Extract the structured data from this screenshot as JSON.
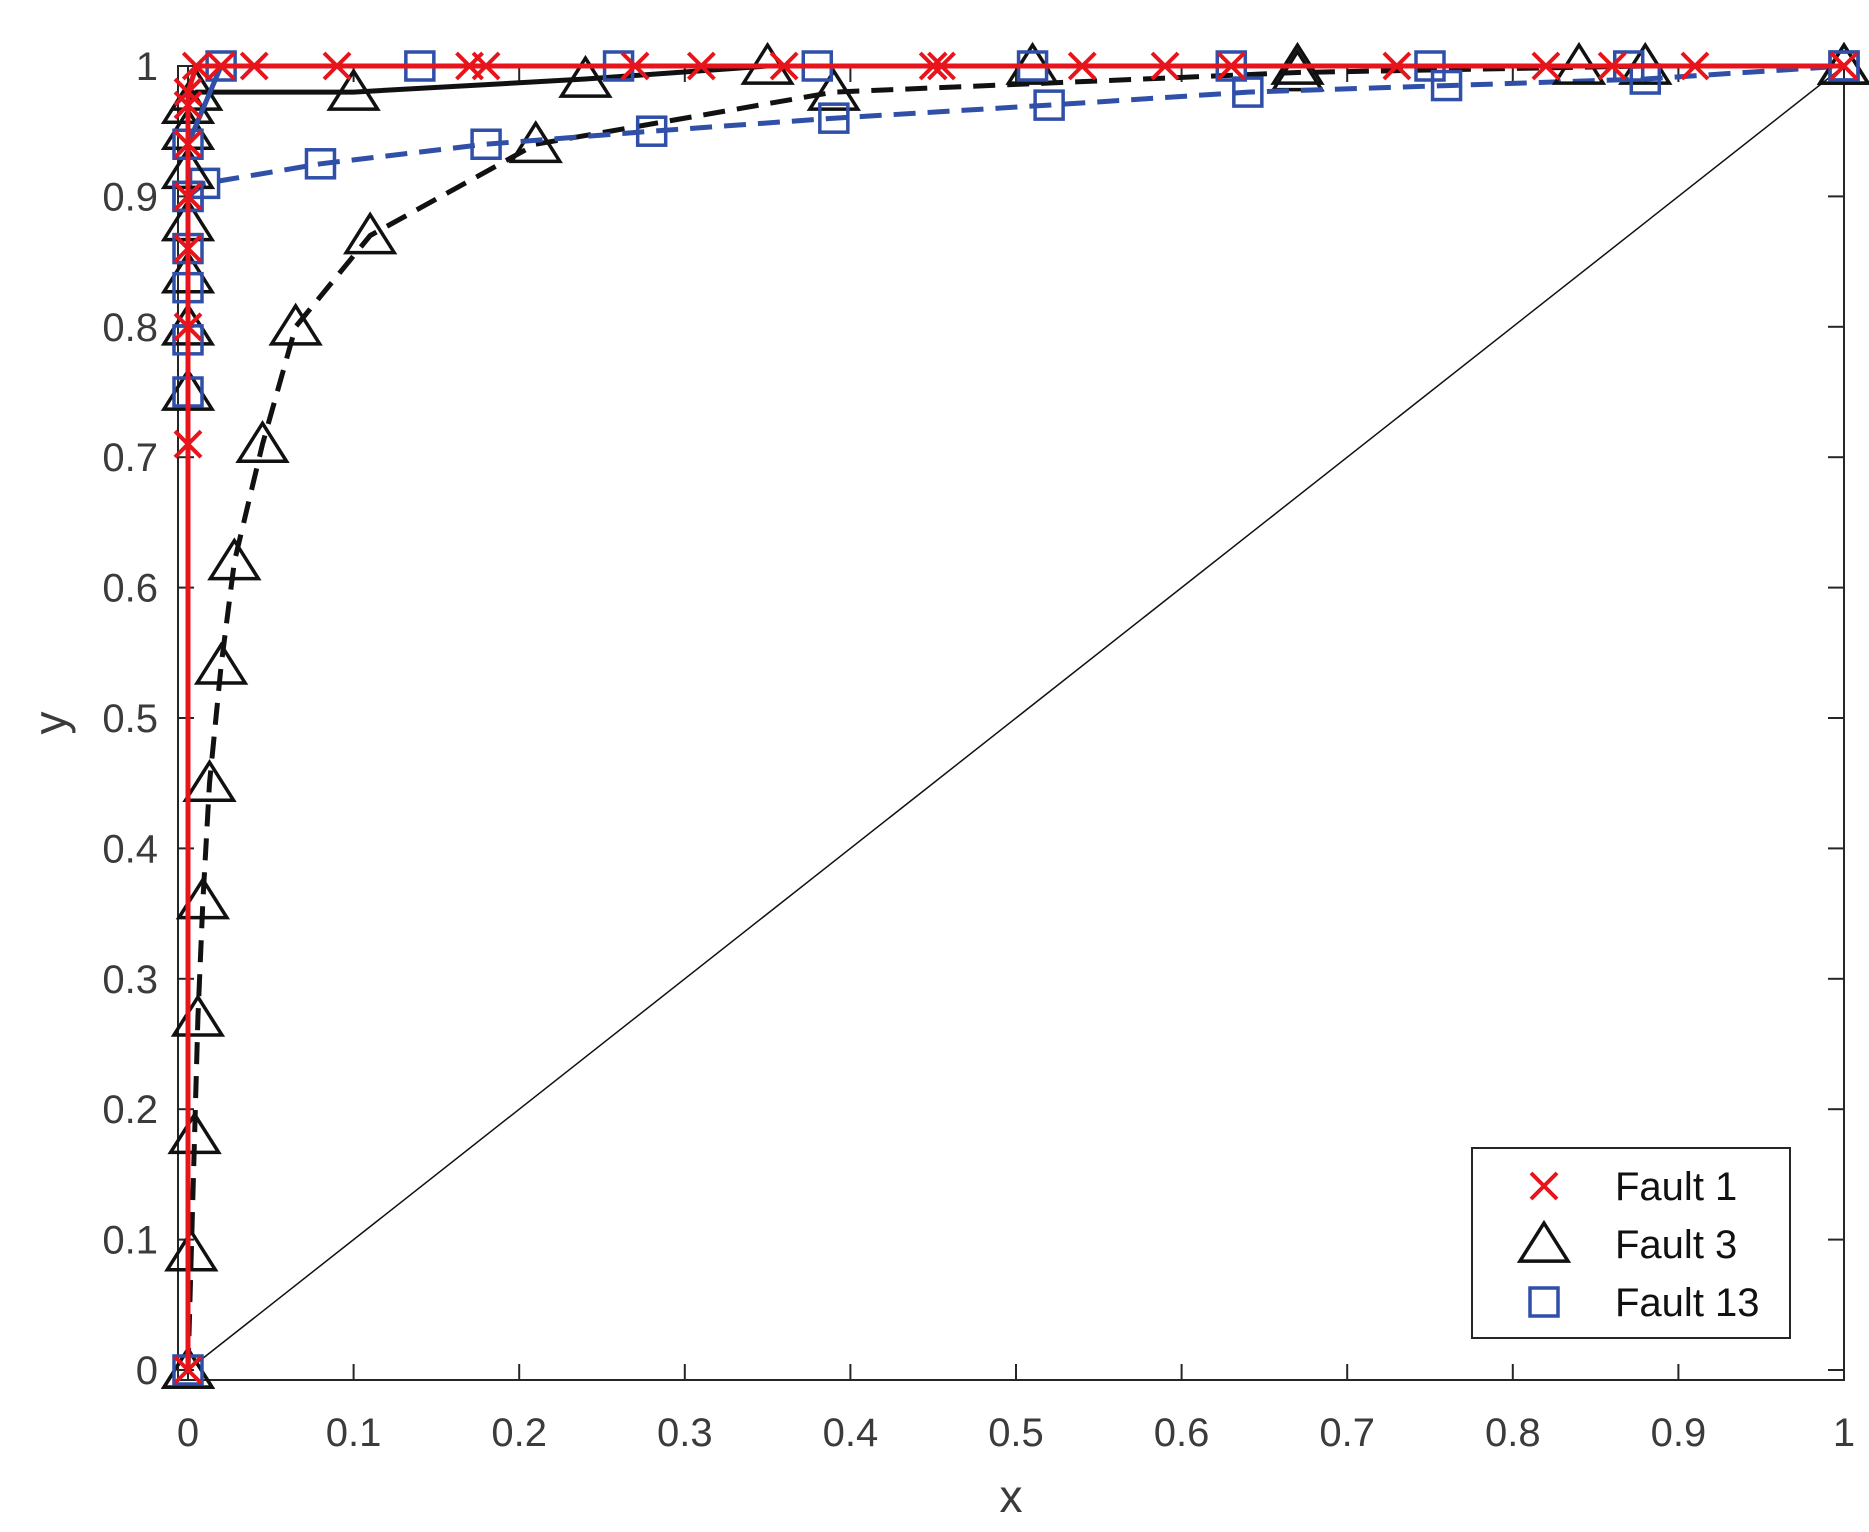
{
  "chart_data": {
    "type": "line",
    "xlabel": "x",
    "ylabel": "y",
    "xlim": [
      0,
      1
    ],
    "ylim": [
      0,
      1
    ],
    "xticks": [
      "0",
      "0.1",
      "0.2",
      "0.3",
      "0.4",
      "0.5",
      "0.6",
      "0.7",
      "0.8",
      "0.9",
      "1"
    ],
    "yticks": [
      "0",
      "0.1",
      "0.2",
      "0.3",
      "0.4",
      "0.5",
      "0.6",
      "0.7",
      "0.8",
      "0.9",
      "1"
    ],
    "grid": false,
    "legend_position": "bottom-right",
    "series": [
      {
        "name": "Fault 1",
        "color": "#e8141c",
        "marker": "x",
        "line_style": "solid",
        "x": [
          0,
          0,
          0,
          0,
          0,
          0,
          0,
          0,
          0.005,
          0.02,
          0.04,
          0.09,
          0.17,
          0.18,
          0.27,
          0.31,
          0.36,
          0.45,
          0.455,
          0.54,
          0.59,
          0.63,
          0.73,
          0.82,
          0.86,
          0.91,
          1
        ],
        "y": [
          0,
          0.71,
          0.8,
          0.86,
          0.9,
          0.94,
          0.97,
          0.98,
          1,
          1,
          1,
          1,
          1,
          1,
          1,
          1,
          1,
          1,
          1,
          1,
          1,
          1,
          1,
          1,
          1,
          1,
          1
        ]
      },
      {
        "name": "Fault 3",
        "color": "#111111",
        "marker": "triangle",
        "line_style": "solid",
        "x": [
          0,
          0,
          0,
          0,
          0,
          0,
          0,
          0,
          0.005,
          0.1,
          0.24,
          0.35,
          0.51,
          0.67,
          0.84,
          1
        ],
        "y": [
          0,
          0.75,
          0.8,
          0.84,
          0.88,
          0.92,
          0.95,
          0.97,
          0.98,
          0.98,
          0.99,
          1,
          1,
          1,
          1,
          1
        ]
      },
      {
        "name": "",
        "color": "#111111",
        "marker": "triangle",
        "line_style": "dashed",
        "x": [
          0,
          0.002,
          0.004,
          0.006,
          0.009,
          0.013,
          0.02,
          0.028,
          0.045,
          0.065,
          0.11,
          0.21,
          0.39,
          0.67,
          0.88,
          1
        ],
        "y": [
          0,
          0.09,
          0.18,
          0.27,
          0.36,
          0.45,
          0.54,
          0.62,
          0.71,
          0.8,
          0.87,
          0.94,
          0.98,
          0.995,
          1,
          1
        ]
      },
      {
        "name": "Fault 13",
        "color": "#2f4fa8",
        "marker": "square",
        "line_style": "solid",
        "x": [
          0,
          0,
          0,
          0,
          0,
          0,
          0,
          0.02,
          0.14,
          0.26,
          0.38,
          0.51,
          0.63,
          0.75,
          0.87,
          1
        ],
        "y": [
          0,
          0.75,
          0.79,
          0.83,
          0.86,
          0.9,
          0.94,
          1,
          1,
          1,
          1,
          1,
          1,
          1,
          1,
          1
        ]
      },
      {
        "name": "",
        "color": "#2f4fa8",
        "marker": "square",
        "line_style": "dashed",
        "x": [
          0,
          0.01,
          0.08,
          0.18,
          0.28,
          0.39,
          0.52,
          0.64,
          0.76,
          0.88,
          1
        ],
        "y": [
          0.9,
          0.91,
          0.925,
          0.94,
          0.95,
          0.96,
          0.97,
          0.98,
          0.985,
          0.99,
          1
        ]
      },
      {
        "name": "",
        "color": "#111111",
        "marker": "none",
        "line_style": "thin",
        "x": [
          0,
          1
        ],
        "y": [
          0,
          1
        ]
      }
    ],
    "legend": [
      "Fault 1",
      "Fault 3",
      "Fault 13"
    ]
  }
}
